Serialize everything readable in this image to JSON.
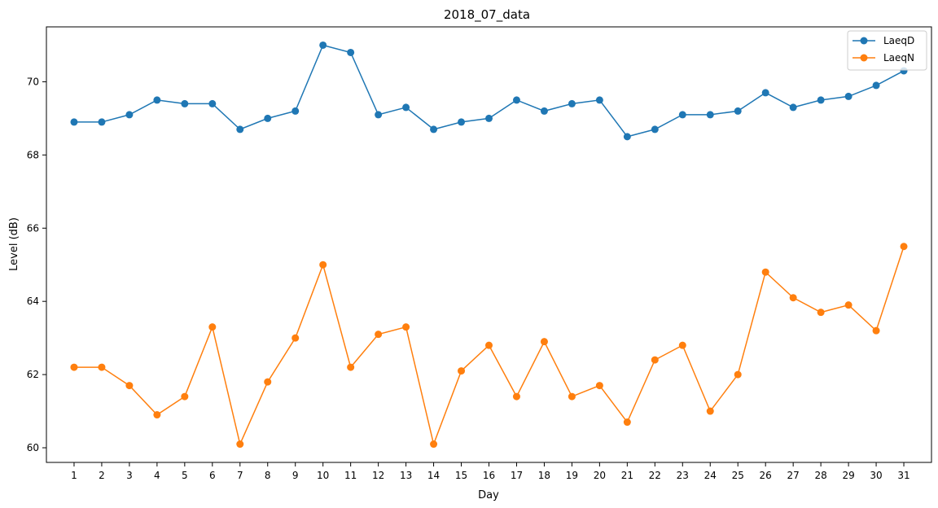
{
  "chart_data": {
    "type": "line",
    "title": "2018_07_data",
    "xlabel": "Day",
    "ylabel": "Level (dB)",
    "x": [
      1,
      2,
      3,
      4,
      5,
      6,
      7,
      8,
      9,
      10,
      11,
      12,
      13,
      14,
      15,
      16,
      17,
      18,
      19,
      20,
      21,
      22,
      23,
      24,
      25,
      26,
      27,
      28,
      29,
      30,
      31
    ],
    "xlim": [
      0,
      32
    ],
    "ylim": [
      59.6,
      71.5
    ],
    "yticks": [
      60,
      62,
      64,
      66,
      68,
      70
    ],
    "grid": false,
    "legend_position": "top-right",
    "series": [
      {
        "name": "LaeqD",
        "color": "#1f77b4",
        "marker": "circle",
        "values": [
          68.9,
          68.9,
          69.1,
          69.5,
          69.4,
          69.4,
          68.7,
          69.0,
          69.2,
          71.0,
          70.8,
          69.1,
          69.3,
          68.7,
          68.9,
          69.0,
          69.5,
          69.2,
          69.4,
          69.5,
          68.5,
          68.7,
          69.1,
          69.1,
          69.2,
          69.7,
          69.3,
          69.5,
          69.6,
          69.9,
          70.3
        ]
      },
      {
        "name": "LaeqN",
        "color": "#ff7f0e",
        "marker": "circle",
        "values": [
          62.2,
          62.2,
          61.7,
          60.9,
          61.4,
          63.3,
          60.1,
          61.8,
          63.0,
          65.0,
          62.2,
          63.1,
          63.3,
          60.1,
          62.1,
          62.8,
          61.4,
          62.9,
          61.4,
          61.7,
          60.7,
          62.4,
          62.8,
          61.0,
          62.0,
          64.8,
          64.1,
          63.7,
          63.9,
          63.2,
          65.5
        ]
      }
    ]
  }
}
